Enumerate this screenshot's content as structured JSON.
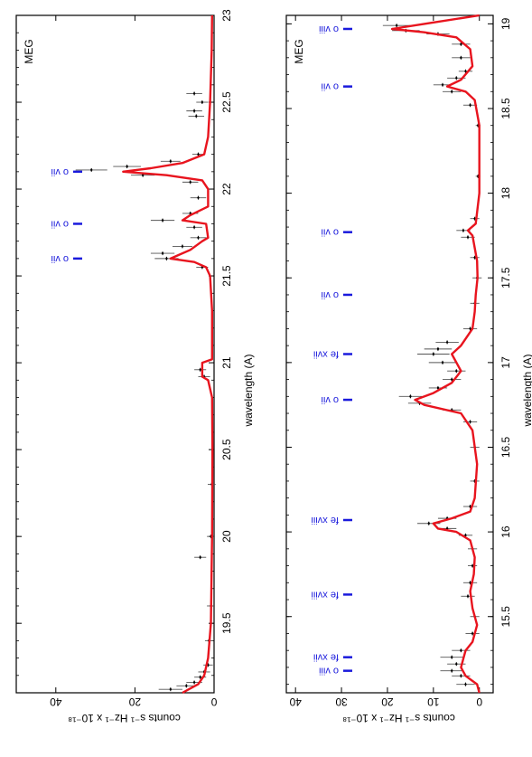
{
  "chart_data": [
    {
      "type": "line",
      "panel": "left",
      "instrument": "MEG",
      "xlabel": "wavelength (A)",
      "ylabel": "counts s⁻¹ Hz⁻¹ x 10⁻¹⁸",
      "xlim": [
        19.1,
        23.0
      ],
      "ylim": [
        0,
        50
      ],
      "xticks": [
        19.5,
        20,
        20.5,
        21,
        21.5,
        22,
        22.5,
        23
      ],
      "xtick_labels": [
        "19.5",
        "20",
        "20.5",
        "21",
        "21.5",
        "22",
        "22.5",
        "23"
      ],
      "yticks": [
        0,
        20,
        40
      ],
      "ytick_labels": [
        "0",
        "20",
        "40"
      ],
      "colors": {
        "data": "#000000",
        "model": "#e8141e",
        "lines": "#1a1adc"
      },
      "lines": [
        {
          "label": "o vii",
          "wavelength": 21.6
        },
        {
          "label": "o vii",
          "wavelength": 21.8
        },
        {
          "label": "o vii",
          "wavelength": 22.1
        }
      ],
      "series": [
        {
          "name": "model",
          "x": [
            19.1,
            19.15,
            19.2,
            19.3,
            19.5,
            20.0,
            20.5,
            20.8,
            20.9,
            20.92,
            21.0,
            21.02,
            21.3,
            21.5,
            21.55,
            21.58,
            21.6,
            21.62,
            21.65,
            21.7,
            21.72,
            21.8,
            21.82,
            21.85,
            21.9,
            22.0,
            22.05,
            22.08,
            22.1,
            22.12,
            22.15,
            22.2,
            22.3,
            22.5,
            22.8,
            23.0
          ],
          "y": [
            8,
            4,
            2.5,
            1.5,
            0.8,
            0.5,
            0.4,
            0.5,
            1.5,
            3,
            3,
            0.5,
            0.5,
            1,
            2,
            5,
            11,
            9,
            6,
            3,
            1.5,
            2,
            8,
            6,
            1.5,
            1.5,
            3,
            12,
            23,
            16,
            8,
            2.5,
            1.5,
            1,
            0.6,
            0.5
          ]
        },
        {
          "name": "data",
          "x": [
            19.12,
            19.14,
            19.16,
            19.19,
            19.22,
            19.26,
            19.4,
            19.6,
            19.88,
            20.0,
            20.3,
            20.92,
            20.96,
            21.55,
            21.6,
            21.63,
            21.67,
            21.72,
            21.78,
            21.82,
            21.86,
            21.95,
            22.04,
            22.08,
            22.11,
            22.13,
            22.16,
            22.2,
            22.42,
            22.45,
            22.5,
            22.55
          ],
          "y": [
            11,
            7,
            5,
            3.5,
            2.5,
            1.5,
            1.3,
            0.8,
            3.5,
            0.8,
            0.6,
            2.5,
            3.5,
            3,
            12,
            13,
            8,
            4,
            5,
            13,
            6,
            4,
            6,
            18,
            31,
            22,
            11,
            4,
            4.5,
            5,
            3,
            5
          ],
          "yerr": [
            3,
            2.5,
            2,
            1.5,
            1.5,
            1.2,
            1,
            1,
            1.5,
            1,
            1,
            1.5,
            1.5,
            1.5,
            3,
            3,
            2.5,
            2,
            2,
            3,
            2,
            2,
            2,
            3,
            4,
            3.5,
            2.5,
            1.5,
            2,
            2,
            1.5,
            2
          ]
        }
      ]
    },
    {
      "type": "line",
      "panel": "right",
      "instrument": "MEG",
      "xlabel": "wavelength (A)",
      "ylabel": "counts s⁻¹ Hz⁻¹ x 10⁻¹⁸",
      "xlim": [
        15.05,
        19.05
      ],
      "ylim": [
        -3,
        42
      ],
      "xticks": [
        15.5,
        16,
        16.5,
        17,
        17.5,
        18,
        18.5,
        19
      ],
      "xtick_labels": [
        "15.5",
        "16",
        "16.5",
        "17",
        "17.5",
        "18",
        "18.5",
        "19"
      ],
      "yticks": [
        0,
        10,
        20,
        30,
        40
      ],
      "ytick_labels": [
        "0",
        "10",
        "20",
        "30",
        "40"
      ],
      "colors": {
        "data": "#000000",
        "model": "#e8141e",
        "lines": "#1a1adc"
      },
      "lines": [
        {
          "label": "o viii",
          "wavelength": 15.18
        },
        {
          "label": "fe xvii",
          "wavelength": 15.26
        },
        {
          "label": "fe xviii",
          "wavelength": 15.63
        },
        {
          "label": "fe xviii",
          "wavelength": 16.07
        },
        {
          "label": "o vii",
          "wavelength": 16.78
        },
        {
          "label": "fe xvii",
          "wavelength": 17.05
        },
        {
          "label": "o vii",
          "wavelength": 17.4
        },
        {
          "label": "o vii",
          "wavelength": 17.77
        },
        {
          "label": "o vii",
          "wavelength": 18.63
        },
        {
          "label": "o viii",
          "wavelength": 18.97
        }
      ],
      "series": [
        {
          "name": "model",
          "x": [
            15.05,
            15.1,
            15.15,
            15.2,
            15.25,
            15.3,
            15.35,
            15.45,
            15.55,
            15.65,
            15.75,
            15.85,
            15.95,
            16.0,
            16.02,
            16.05,
            16.08,
            16.12,
            16.2,
            16.4,
            16.6,
            16.7,
            16.75,
            16.78,
            16.82,
            16.88,
            16.95,
            17.05,
            17.1,
            17.2,
            17.3,
            17.4,
            17.5,
            17.6,
            17.75,
            17.78,
            17.82,
            18.0,
            18.4,
            18.55,
            18.6,
            18.63,
            18.67,
            18.75,
            18.85,
            18.92,
            18.95,
            18.97,
            19.0,
            19.05
          ],
          "y": [
            0,
            0.5,
            3,
            4,
            3.5,
            3,
            1.5,
            0.5,
            1.5,
            2,
            1.2,
            1,
            2,
            5,
            9,
            10,
            6,
            2,
            1,
            0.5,
            1.5,
            4,
            12,
            14,
            10,
            6,
            4,
            6,
            4,
            1.5,
            1,
            0.8,
            0.4,
            0.5,
            1.5,
            2.5,
            0.8,
            0,
            0,
            1,
            3,
            7,
            4,
            1.5,
            2,
            5,
            12,
            19,
            12,
            0
          ]
        },
        {
          "name": "data",
          "x": [
            15.1,
            15.15,
            15.18,
            15.22,
            15.26,
            15.3,
            15.4,
            15.5,
            15.62,
            15.7,
            15.8,
            15.9,
            15.98,
            16.02,
            16.05,
            16.08,
            16.15,
            16.3,
            16.5,
            16.65,
            16.72,
            16.76,
            16.8,
            16.85,
            16.9,
            16.95,
            17.0,
            17.05,
            17.08,
            17.12,
            17.2,
            17.35,
            17.5,
            17.62,
            17.74,
            17.78,
            17.85,
            18.1,
            18.4,
            18.52,
            18.6,
            18.64,
            18.68,
            18.72,
            18.8,
            18.88,
            18.94,
            18.96,
            18.99
          ],
          "y": [
            3,
            4,
            6,
            5,
            6,
            4,
            1.5,
            1,
            2.5,
            2,
            1.5,
            1.5,
            3,
            7,
            11,
            7,
            2,
            1,
            1,
            2,
            6,
            13,
            15,
            9,
            6,
            5,
            8,
            10,
            9,
            7,
            2,
            1,
            0.5,
            1,
            2.5,
            3.5,
            1,
            0.3,
            0.3,
            2,
            6,
            8,
            5,
            3,
            4,
            4,
            9,
            16,
            18
          ],
          "yerr": [
            2,
            2,
            2.5,
            2,
            2.5,
            2,
            1.5,
            1,
            1.5,
            1.5,
            1,
            1,
            1.5,
            2,
            2.5,
            2,
            1.5,
            1,
            1,
            1.5,
            2,
            2.5,
            2.5,
            2,
            2,
            2,
            3,
            3.5,
            3,
            2.5,
            1.5,
            1,
            1,
            1,
            1.5,
            1.5,
            1,
            0.5,
            0.5,
            1.5,
            2,
            2,
            2,
            1.5,
            2,
            2,
            2.5,
            3,
            3
          ]
        }
      ]
    }
  ]
}
